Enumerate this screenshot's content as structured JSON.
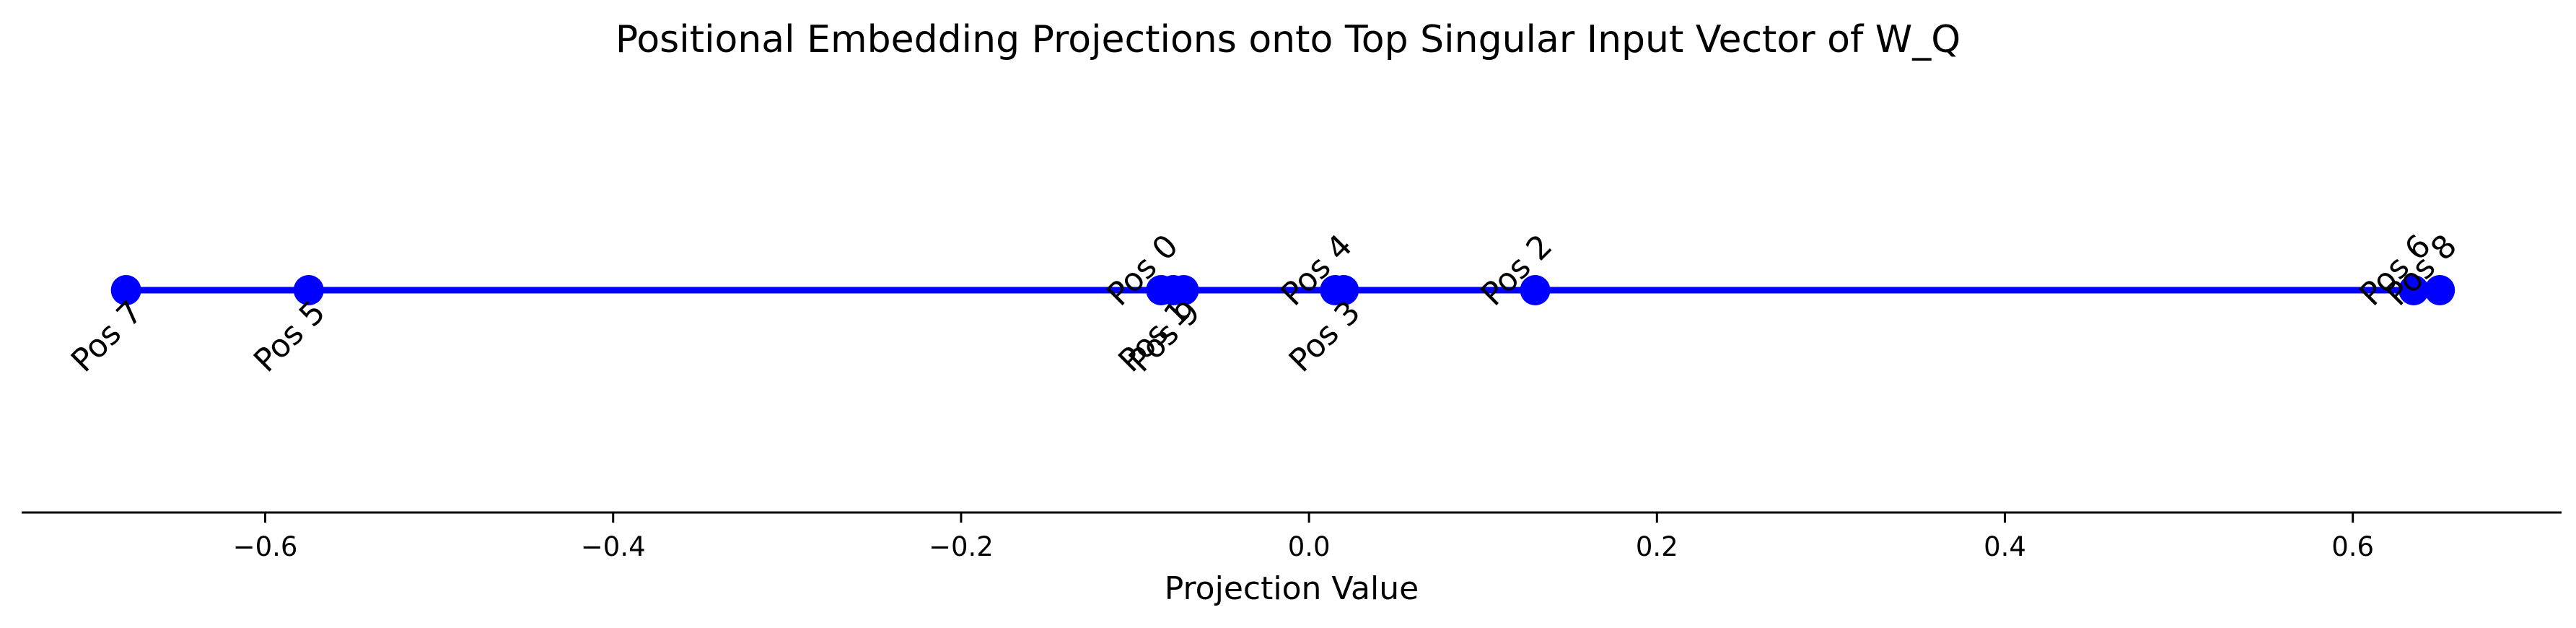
{
  "chart_data": {
    "type": "scatter",
    "title": "Positional Embedding Projections onto Top Singular Input Vector of W_Q",
    "xlabel": "Projection Value",
    "ylabel": "",
    "xlim": [
      -0.74,
      0.72
    ],
    "x_ticks": [
      -0.6,
      -0.4,
      -0.2,
      0.0,
      0.2,
      0.4,
      0.6
    ],
    "x_tick_labels": [
      "−0.6",
      "−0.4",
      "−0.2",
      "0.0",
      "0.2",
      "0.4",
      "0.6"
    ],
    "grid": false,
    "line_color": "#0000ff",
    "marker_color": "#0000ff",
    "points": [
      {
        "label": "Pos 0",
        "x": -0.085,
        "label_side": "above"
      },
      {
        "label": "Pos 1",
        "x": -0.078,
        "label_side": "below"
      },
      {
        "label": "Pos 2",
        "x": 0.13,
        "label_side": "above"
      },
      {
        "label": "Pos 3",
        "x": 0.02,
        "label_side": "below"
      },
      {
        "label": "Pos 4",
        "x": 0.015,
        "label_side": "above"
      },
      {
        "label": "Pos 5",
        "x": -0.575,
        "label_side": "below"
      },
      {
        "label": "Pos 6",
        "x": 0.635,
        "label_side": "above"
      },
      {
        "label": "Pos 7",
        "x": -0.68,
        "label_side": "below"
      },
      {
        "label": "Pos 8",
        "x": 0.65,
        "label_side": "above"
      },
      {
        "label": "Pos 9",
        "x": -0.072,
        "label_side": "below"
      }
    ]
  }
}
